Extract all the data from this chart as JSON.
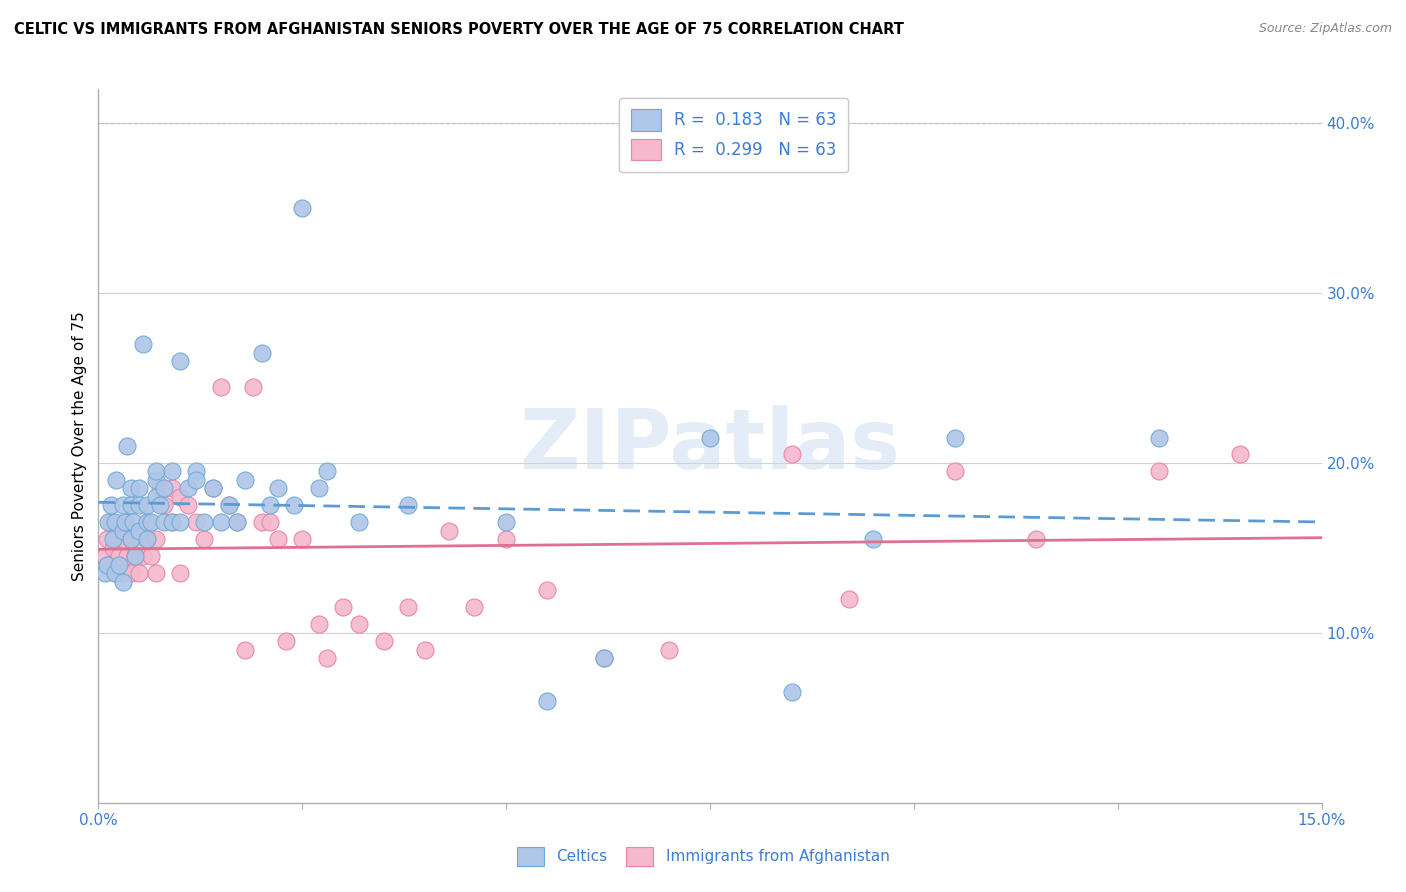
{
  "title": "CELTIC VS IMMIGRANTS FROM AFGHANISTAN SENIORS POVERTY OVER THE AGE OF 75 CORRELATION CHART",
  "source": "Source: ZipAtlas.com",
  "ylabel": "Seniors Poverty Over the Age of 75",
  "xlim": [
    0.0,
    0.15
  ],
  "ylim": [
    0.0,
    0.42
  ],
  "xticks": [
    0.0,
    0.025,
    0.05,
    0.075,
    0.1,
    0.125,
    0.15
  ],
  "xtick_labels": [
    "0.0%",
    "",
    "",
    "",
    "",
    "",
    "15.0%"
  ],
  "yticks": [
    0.0,
    0.1,
    0.2,
    0.3,
    0.4
  ],
  "ytick_labels": [
    "",
    "10.0%",
    "20.0%",
    "30.0%",
    "40.0%"
  ],
  "celtics_color": "#aec6e8",
  "afghanistan_color": "#f5b8cc",
  "celtics_edge": "#6fa8d4",
  "afghanistan_edge": "#e880a8",
  "line_celtics_color": "#5b9bd5",
  "line_afghanistan_color": "#e07090",
  "line_celtics_dash": [
    6,
    3
  ],
  "celtics_scatter_x": [
    0.0008,
    0.001,
    0.0012,
    0.0015,
    0.0018,
    0.002,
    0.002,
    0.0022,
    0.0025,
    0.003,
    0.003,
    0.003,
    0.0032,
    0.0035,
    0.004,
    0.004,
    0.004,
    0.0042,
    0.0045,
    0.005,
    0.005,
    0.005,
    0.0055,
    0.006,
    0.006,
    0.006,
    0.0065,
    0.007,
    0.007,
    0.007,
    0.0075,
    0.008,
    0.008,
    0.009,
    0.009,
    0.01,
    0.01,
    0.011,
    0.012,
    0.012,
    0.013,
    0.014,
    0.015,
    0.016,
    0.017,
    0.018,
    0.02,
    0.021,
    0.022,
    0.024,
    0.025,
    0.027,
    0.028,
    0.032,
    0.038,
    0.05,
    0.055,
    0.062,
    0.075,
    0.085,
    0.095,
    0.105,
    0.13
  ],
  "celtics_scatter_y": [
    0.135,
    0.14,
    0.165,
    0.175,
    0.155,
    0.135,
    0.165,
    0.19,
    0.14,
    0.13,
    0.16,
    0.175,
    0.165,
    0.21,
    0.155,
    0.175,
    0.185,
    0.165,
    0.145,
    0.16,
    0.175,
    0.185,
    0.27,
    0.155,
    0.165,
    0.175,
    0.165,
    0.18,
    0.19,
    0.195,
    0.175,
    0.165,
    0.185,
    0.165,
    0.195,
    0.165,
    0.26,
    0.185,
    0.195,
    0.19,
    0.165,
    0.185,
    0.165,
    0.175,
    0.165,
    0.19,
    0.265,
    0.175,
    0.185,
    0.175,
    0.35,
    0.185,
    0.195,
    0.165,
    0.175,
    0.165,
    0.06,
    0.085,
    0.215,
    0.065,
    0.155,
    0.215,
    0.215
  ],
  "afghanistan_scatter_x": [
    0.0008,
    0.001,
    0.0012,
    0.0015,
    0.0018,
    0.002,
    0.0022,
    0.0025,
    0.003,
    0.003,
    0.0032,
    0.0035,
    0.004,
    0.004,
    0.0045,
    0.005,
    0.005,
    0.0055,
    0.006,
    0.006,
    0.0065,
    0.007,
    0.007,
    0.0075,
    0.008,
    0.008,
    0.009,
    0.009,
    0.01,
    0.01,
    0.011,
    0.012,
    0.013,
    0.014,
    0.015,
    0.016,
    0.017,
    0.018,
    0.019,
    0.02,
    0.021,
    0.022,
    0.023,
    0.025,
    0.027,
    0.028,
    0.03,
    0.032,
    0.035,
    0.038,
    0.04,
    0.043,
    0.046,
    0.05,
    0.055,
    0.062,
    0.07,
    0.085,
    0.092,
    0.105,
    0.115,
    0.13,
    0.14
  ],
  "afghanistan_scatter_y": [
    0.145,
    0.155,
    0.14,
    0.165,
    0.15,
    0.135,
    0.155,
    0.145,
    0.135,
    0.155,
    0.165,
    0.145,
    0.135,
    0.155,
    0.145,
    0.135,
    0.155,
    0.145,
    0.155,
    0.165,
    0.145,
    0.135,
    0.155,
    0.185,
    0.175,
    0.185,
    0.165,
    0.185,
    0.135,
    0.18,
    0.175,
    0.165,
    0.155,
    0.185,
    0.245,
    0.175,
    0.165,
    0.09,
    0.245,
    0.165,
    0.165,
    0.155,
    0.095,
    0.155,
    0.105,
    0.085,
    0.115,
    0.105,
    0.095,
    0.115,
    0.09,
    0.16,
    0.115,
    0.155,
    0.125,
    0.085,
    0.09,
    0.205,
    0.12,
    0.195,
    0.155,
    0.195,
    0.205
  ]
}
